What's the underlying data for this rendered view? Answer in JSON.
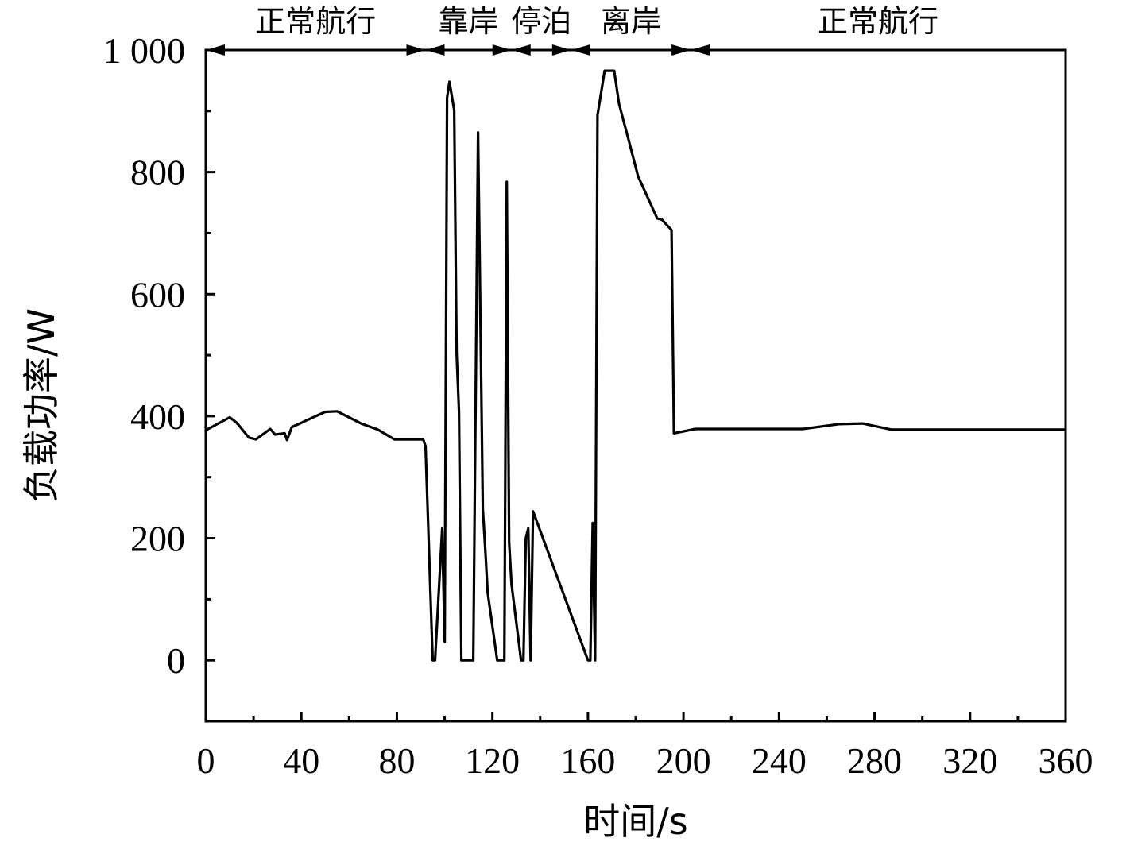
{
  "chart_data": {
    "type": "line",
    "xlabel": "时间/s",
    "ylabel": "负载功率/W",
    "xlim": [
      0,
      360
    ],
    "ylim": [
      -100,
      1000
    ],
    "xticks": [
      0,
      40,
      80,
      120,
      160,
      200,
      240,
      280,
      320,
      360
    ],
    "xtick_labels": [
      "0",
      "40",
      "80",
      "120",
      "160",
      "200",
      "240",
      "280",
      "320",
      "360"
    ],
    "yticks": [
      0,
      200,
      400,
      600,
      800,
      1000
    ],
    "ytick_labels": [
      "0",
      "200",
      "400",
      "600",
      "800",
      "1 000"
    ],
    "grid": false,
    "phases": [
      {
        "label": "正常航行",
        "start": 0,
        "end": 92
      },
      {
        "label": "靠岸",
        "start": 92,
        "end": 128
      },
      {
        "label": "停泊",
        "start": 128,
        "end": 153
      },
      {
        "label": "离岸",
        "start": 153,
        "end": 203
      },
      {
        "label": "正常航行",
        "start": 203,
        "end": 360
      }
    ],
    "series": [
      {
        "x": [
          0,
          10,
          13,
          18,
          21,
          27,
          29,
          33,
          34,
          36,
          50,
          55,
          65,
          72,
          79,
          91,
          92,
          95,
          96,
          99,
          100,
          101,
          102,
          104,
          105,
          106,
          107,
          112,
          114,
          116,
          117,
          118,
          122,
          125,
          126,
          127,
          128,
          132,
          133,
          134,
          135,
          136,
          137,
          160,
          161,
          162,
          163,
          164,
          167,
          171,
          173,
          177,
          181,
          189,
          191,
          195,
          196,
          205,
          210,
          250,
          265,
          275,
          287,
          360
        ],
        "values": [
          377,
          398,
          389,
          365,
          362,
          379,
          370,
          372,
          361,
          382,
          407,
          408,
          388,
          378,
          362,
          362,
          351,
          0,
          0,
          216,
          30,
          922,
          948,
          901,
          504,
          408,
          0,
          0,
          865,
          248,
          181,
          111,
          0,
          0,
          784,
          193,
          125,
          0,
          0,
          200,
          216,
          0,
          244,
          0,
          0,
          225,
          0,
          893,
          966,
          966,
          912,
          853,
          793,
          724,
          722,
          705,
          372,
          379,
          379,
          379,
          387,
          388,
          378,
          378
        ]
      }
    ]
  }
}
